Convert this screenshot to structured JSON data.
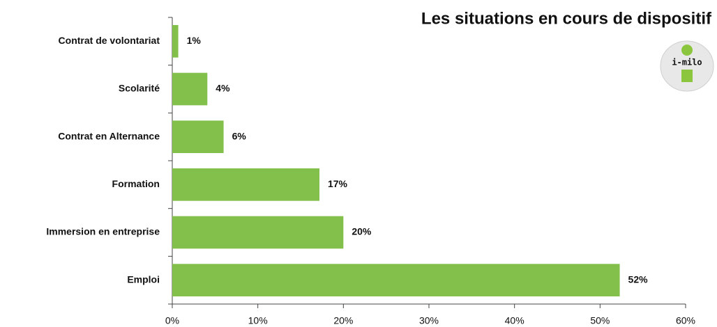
{
  "chart_data": {
    "type": "bar",
    "orientation": "horizontal",
    "title": "Les situations en cours de dispositif",
    "logo_text": "i-milo",
    "categories": [
      "Contrat de volontariat",
      "Scolarité",
      "Contrat en Alternance",
      "Formation",
      "Immersion en entreprise",
      "Emploi"
    ],
    "values": [
      0.7,
      4.1,
      6,
      17.2,
      20,
      52.3
    ],
    "value_labels": [
      "1%",
      "4%",
      "6%",
      "17%",
      "20%",
      "52%"
    ],
    "color": "#82c04b",
    "xlim": [
      0,
      60
    ],
    "xticks": [
      {
        "value": 0,
        "label": "0%"
      },
      {
        "value": 10,
        "label": "10%"
      },
      {
        "value": 20,
        "label": "20%"
      },
      {
        "value": 30,
        "label": "30%"
      },
      {
        "value": 40,
        "label": "40%"
      },
      {
        "value": 50,
        "label": "50%"
      },
      {
        "value": 60,
        "label": "60%"
      }
    ],
    "grid": false
  }
}
